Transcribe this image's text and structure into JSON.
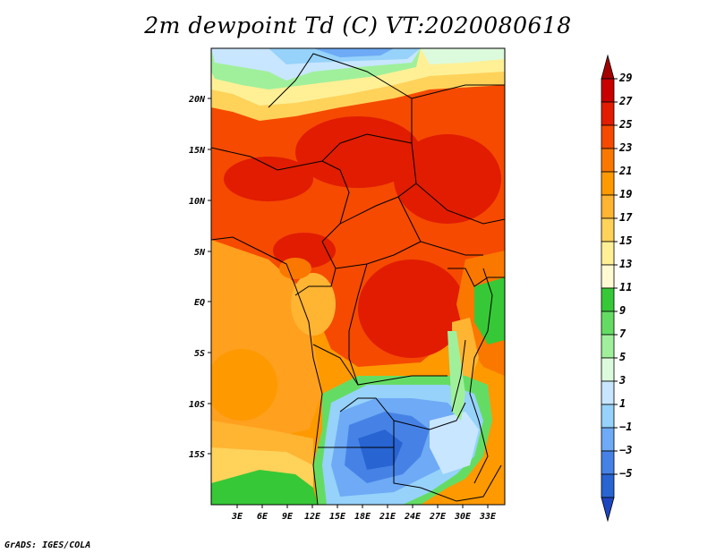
{
  "title": "2m dewpoint Td (C) VT:2020080618",
  "credit": "GrADS: IGES/COLA",
  "map": {
    "lat_ticks": [
      "20N",
      "15N",
      "10N",
      "5N",
      "EQ",
      "5S",
      "10S",
      "15S"
    ],
    "lon_ticks": [
      "3E",
      "6E",
      "9E",
      "12E",
      "15E",
      "18E",
      "21E",
      "24E",
      "27E",
      "30E",
      "33E"
    ]
  },
  "colorbar": {
    "labels": [
      "29",
      "27",
      "25",
      "23",
      "21",
      "19",
      "17",
      "15",
      "13",
      "11",
      "9",
      "7",
      "5",
      "3",
      "1",
      "−1",
      "−3",
      "−5"
    ],
    "colors": [
      "#a50000",
      "#c80000",
      "#e11c00",
      "#f54a00",
      "#fa7800",
      "#ff9900",
      "#ffb432",
      "#ffd25a",
      "#fff096",
      "#fffad2",
      "#37c837",
      "#64dc64",
      "#a0f09b",
      "#dcfadc",
      "#c8e6ff",
      "#96d2fa",
      "#6eaaf5",
      "#4682e6",
      "#2864d2",
      "#1e46be"
    ]
  }
}
